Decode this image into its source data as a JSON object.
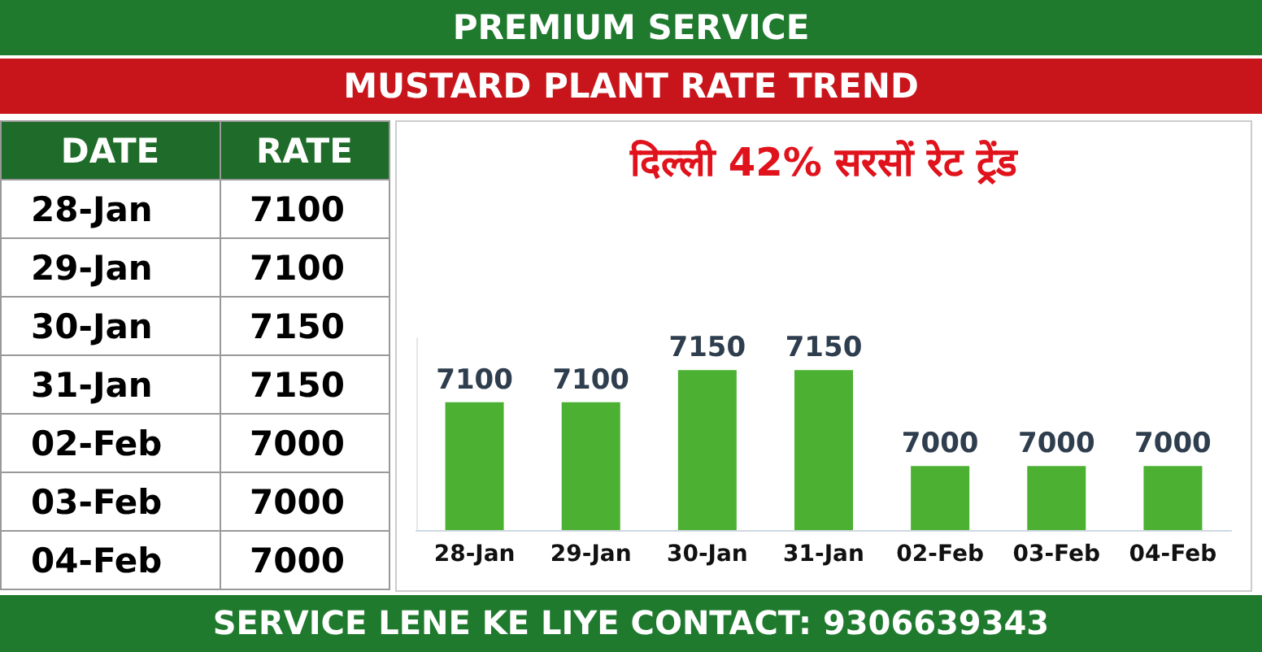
{
  "chart_data": [
    {
      "type": "other",
      "annotations": [
        "DATE",
        "RATE"
      ],
      "categories": [
        "28-Jan",
        "29-Jan",
        "30-Jan",
        "31-Jan",
        "02-Feb",
        "03-Feb",
        "04-Feb"
      ],
      "values": [
        7100,
        7100,
        7150,
        7150,
        7000,
        7000,
        7000
      ],
      "data_labels": true
    },
    {
      "type": "bar",
      "title": "MUSTARD PLANT RATE TREND",
      "subtitle": "दिल्ली 42% सरसों रेट ट्रेंड",
      "annotations": [
        "PREMIUM SERVICE",
        "SERVICE LENE KE LIYE CONTACT: 9306639343"
      ],
      "categories": [
        "28-Jan",
        "29-Jan",
        "30-Jan",
        "31-Jan",
        "02-Feb",
        "03-Feb",
        "04-Feb"
      ],
      "values": [
        7100,
        7100,
        7150,
        7150,
        7000,
        7000,
        7000
      ],
      "color": "#4cb033",
      "ylim": [
        6900,
        7200
      ],
      "tick_labels": "x",
      "data_labels": true,
      "grid": false
    }
  ]
}
